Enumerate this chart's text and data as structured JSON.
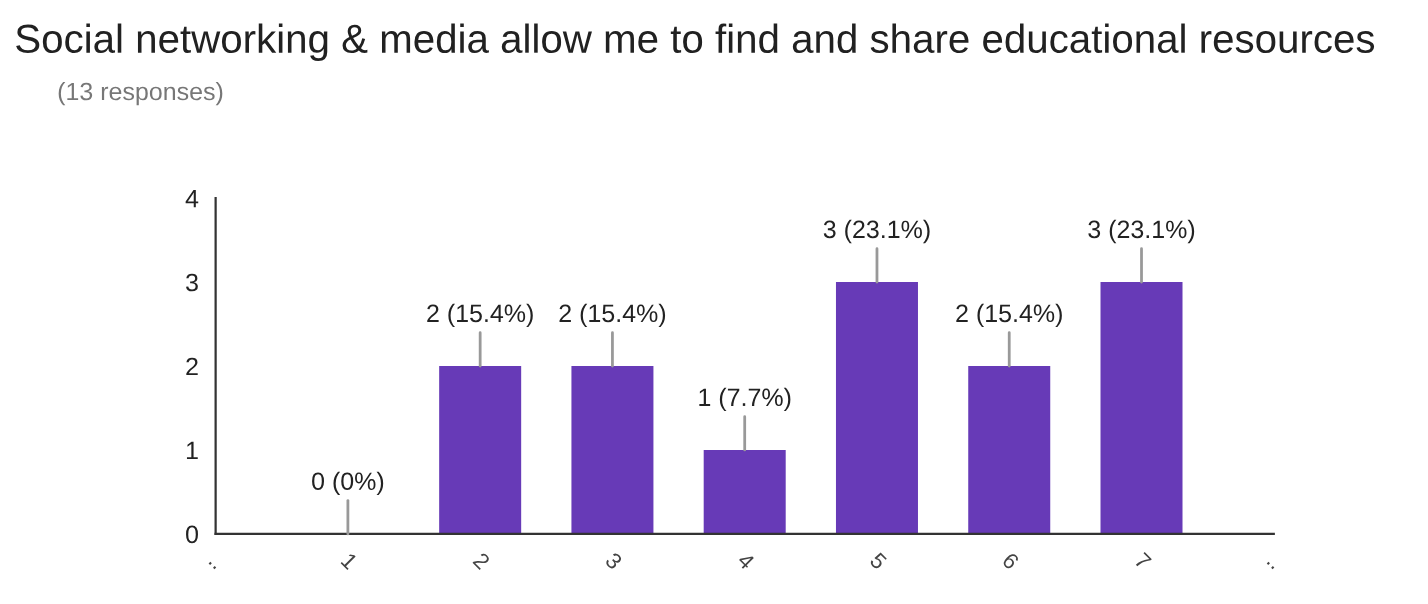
{
  "chart_data": {
    "type": "bar",
    "title": "Social networking & media allow me to find and share educational resources",
    "subtitle": "(13 responses)",
    "categories": [
      "..",
      "1",
      "2",
      "3",
      "4",
      "5",
      "6",
      "7",
      ".."
    ],
    "values": [
      null,
      0,
      2,
      2,
      1,
      3,
      2,
      3,
      null
    ],
    "value_labels": [
      null,
      "0 (0%)",
      "2 (15.4%)",
      "2 (15.4%)",
      "1 (7.7%)",
      "3 (23.1%)",
      "2 (15.4%)",
      "3 (23.1%)",
      null
    ],
    "color": "#673ab7",
    "ylim": [
      0,
      4
    ],
    "yticks": [
      0,
      1,
      2,
      3,
      4
    ],
    "grid": false
  }
}
